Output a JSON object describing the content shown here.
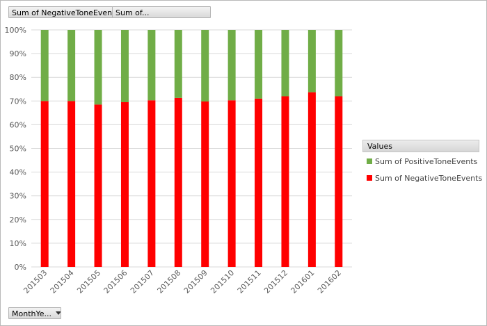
{
  "field_buttons": {
    "negative_label": "Sum of NegativeToneEvents",
    "positive_label": "Sum of...",
    "axis_field_label": "MonthYe..."
  },
  "legend": {
    "title": "Values",
    "items": [
      {
        "label": "Sum of PositiveToneEvents",
        "color": "#70ad47"
      },
      {
        "label": "Sum of NegativeToneEvents",
        "color": "#ff0000"
      }
    ]
  },
  "chart_data": {
    "type": "bar",
    "stacked": "percent",
    "categories": [
      "201503",
      "201504",
      "201505",
      "201506",
      "201507",
      "201508",
      "201509",
      "201510",
      "201511",
      "201512",
      "201601",
      "201602"
    ],
    "series": [
      {
        "name": "Sum of NegativeToneEvents",
        "color": "#ff0000",
        "values": [
          70,
          70,
          68.5,
          69.5,
          70.3,
          71.3,
          69.8,
          70.3,
          71,
          72,
          73.7,
          72
        ]
      },
      {
        "name": "Sum of PositiveToneEvents",
        "color": "#70ad47",
        "values": [
          30,
          30,
          31.5,
          30.5,
          29.7,
          28.7,
          30.2,
          29.7,
          29,
          28,
          26.3,
          28
        ]
      }
    ],
    "y_ticks": [
      "0%",
      "10%",
      "20%",
      "30%",
      "40%",
      "50%",
      "60%",
      "70%",
      "80%",
      "90%",
      "100%"
    ],
    "ylim": [
      0,
      100
    ],
    "grid": true,
    "legend_position": "right"
  }
}
